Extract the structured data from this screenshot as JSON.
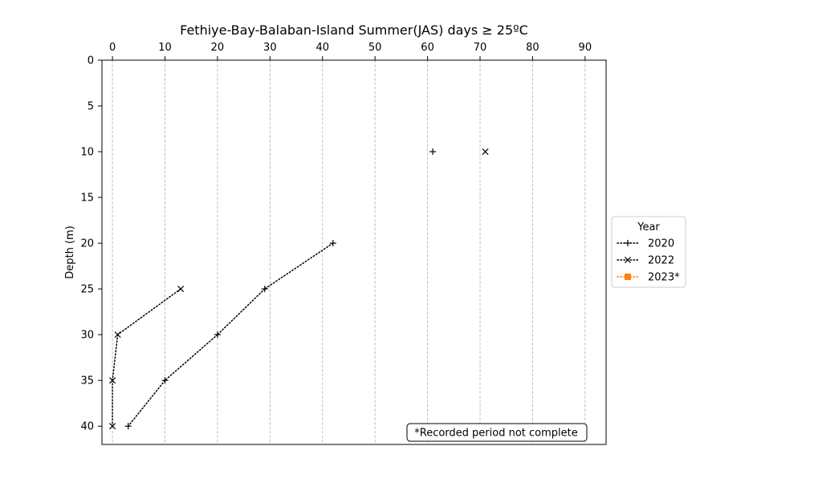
{
  "chart_data": {
    "type": "line",
    "title": "Fethiye-Bay-Balaban-Island Summer(JAS) days ≥ 25ºC",
    "ylabel": "Depth (m)",
    "xlabel": "",
    "xlim": [
      -2,
      94
    ],
    "ylim": [
      42,
      0
    ],
    "x_ticks": [
      0,
      10,
      20,
      30,
      40,
      50,
      60,
      70,
      80,
      90
    ],
    "y_ticks": [
      0,
      5,
      10,
      15,
      20,
      25,
      30,
      35,
      40
    ],
    "x_axis_position": "top",
    "y_inverted": true,
    "grid": "vertical dashed",
    "legend": {
      "title": "Year",
      "placement": "outside-right",
      "entries": [
        "2020",
        "2022",
        "2023*"
      ]
    },
    "annotation": "*Recorded period not complete",
    "series": [
      {
        "name": "2020",
        "marker": "plus",
        "linestyle": "dotted",
        "color": "#000000",
        "points": [
          {
            "x": 61,
            "y": 10
          },
          {
            "x": 42,
            "y": 20
          },
          {
            "x": 29,
            "y": 25
          },
          {
            "x": 20,
            "y": 30
          },
          {
            "x": 10,
            "y": 35
          },
          {
            "x": 3,
            "y": 40
          }
        ],
        "segments": [
          [
            1,
            2
          ],
          [
            2,
            3
          ],
          [
            3,
            4
          ],
          [
            4,
            5
          ]
        ]
      },
      {
        "name": "2022",
        "marker": "x",
        "linestyle": "dotted",
        "color": "#000000",
        "points": [
          {
            "x": 71,
            "y": 10
          },
          {
            "x": 13,
            "y": 25
          },
          {
            "x": 1,
            "y": 30
          },
          {
            "x": 0,
            "y": 35
          },
          {
            "x": 0,
            "y": 40
          }
        ],
        "segments": [
          [
            1,
            2
          ],
          [
            2,
            3
          ],
          [
            3,
            4
          ]
        ]
      },
      {
        "name": "2023*",
        "marker": "square",
        "linestyle": "dotted",
        "color": "#ff7f0e",
        "points": [],
        "segments": []
      }
    ]
  }
}
